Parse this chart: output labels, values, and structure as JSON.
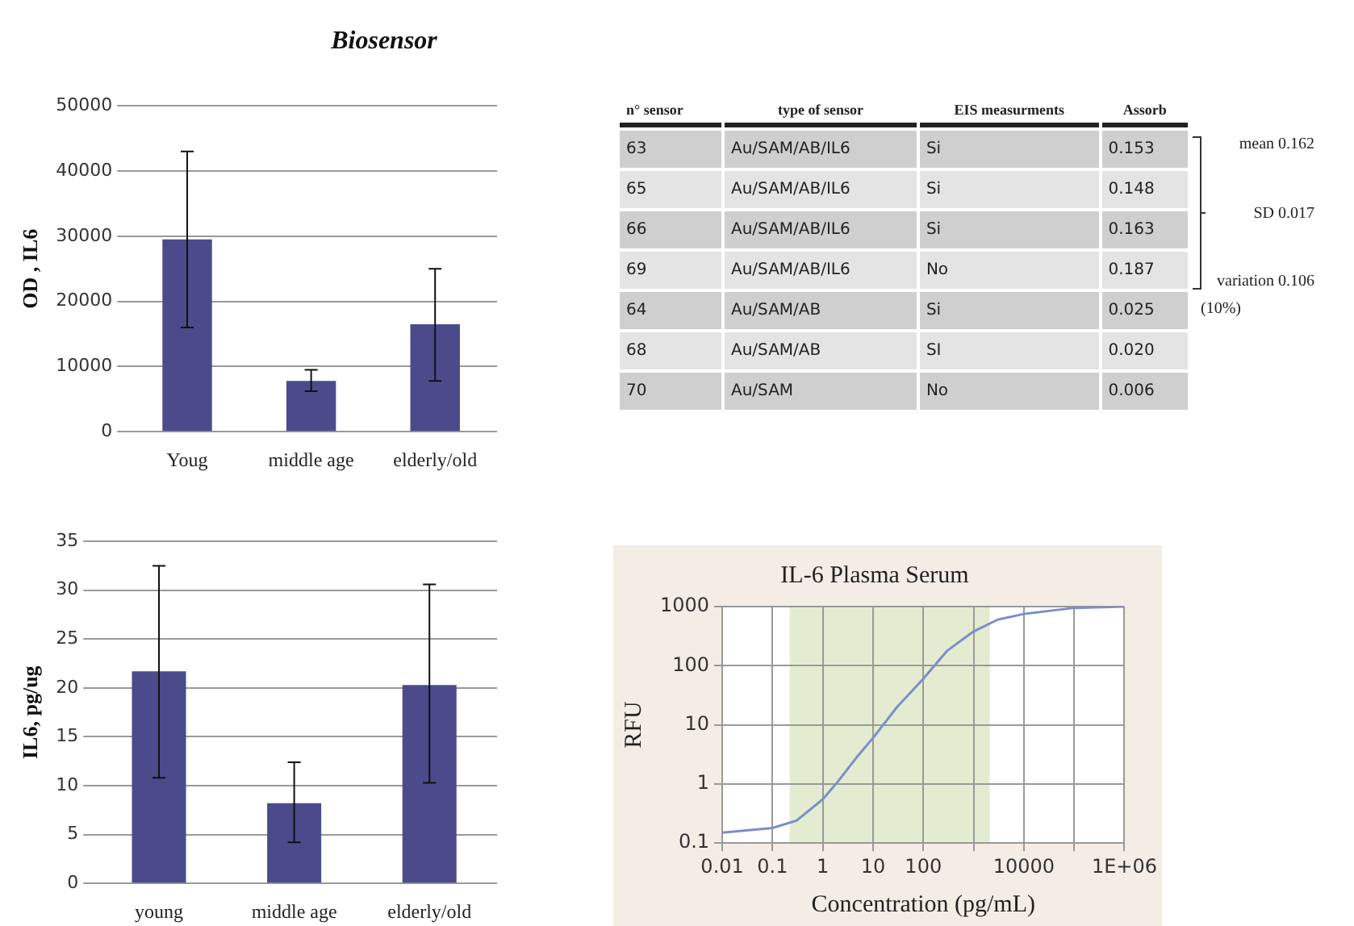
{
  "chart_data": [
    {
      "type": "bar",
      "title": "Biosensor",
      "ylabel": "OD , IL6",
      "categories": [
        "Youg",
        "middle age",
        "elderly/old"
      ],
      "values": [
        29500,
        7800,
        16500
      ],
      "color": "#4b4b8c",
      "errors": [
        [
          16000,
          43000
        ],
        [
          6200,
          9500
        ],
        [
          7800,
          25000
        ]
      ],
      "ylim": [
        0,
        50000
      ],
      "yticks": [
        0,
        10000,
        20000,
        30000,
        40000,
        50000
      ],
      "grid": "y"
    },
    {
      "type": "other",
      "categories": [
        "n° sensor",
        "type of sensor",
        "EIS measurments",
        "Assorb"
      ],
      "cell_labels": [
        [
          "63",
          "Au/SAM/AB/IL6",
          "Si",
          "0.153"
        ],
        [
          "65",
          "Au/SAM/AB/IL6",
          "Si",
          "0.148"
        ],
        [
          "66",
          "Au/SAM/AB/IL6",
          "Si",
          "0.163"
        ],
        [
          "69",
          "Au/SAM/AB/IL6",
          "No",
          "0.187"
        ],
        [
          "64",
          "Au/SAM/AB",
          "Si",
          "0.025"
        ],
        [
          "68",
          "Au/SAM/AB",
          "SI",
          "0.020"
        ],
        [
          "70",
          "Au/SAM",
          "No",
          "0.006"
        ]
      ],
      "annotations": [
        "mean 0.162",
        "SD 0.017",
        "variation 0.106",
        "(10%)"
      ]
    },
    {
      "type": "bar",
      "ylabel": "IL6, pg/ug",
      "categories": [
        "young",
        "middle age",
        "elderly/old"
      ],
      "values": [
        21.7,
        8.2,
        20.3
      ],
      "color": "#4b4b8c",
      "errors": [
        [
          10.8,
          32.5
        ],
        [
          4.2,
          12.4
        ],
        [
          10.3,
          30.6
        ]
      ],
      "ylim": [
        0,
        35
      ],
      "yticks": [
        0,
        5,
        10,
        15,
        20,
        25,
        30,
        35
      ],
      "grid": "y"
    },
    {
      "type": "line",
      "title": "IL-6 Plasma Serum",
      "xlabel": "Concentration (pg/mL)",
      "ylabel": "RFU",
      "log": "xy",
      "grid": true,
      "marker": "none",
      "x": [
        0.01,
        0.1,
        0.3,
        1,
        2,
        5,
        10,
        30,
        100,
        300,
        1000,
        3000,
        10000,
        100000,
        1000000
      ],
      "values": [
        0.15,
        0.18,
        0.24,
        0.55,
        1.1,
        3,
        6,
        20,
        60,
        180,
        380,
        600,
        750,
        950,
        1000
      ],
      "color": "#7b8fc7",
      "xlim": [
        0.01,
        1000000
      ],
      "xticks": [
        {
          "value": 0.01,
          "label": "0.01"
        },
        {
          "value": 0.1,
          "label": "0.1"
        },
        1,
        10,
        100,
        {
          "value": 1000,
          "label": null
        },
        10000,
        {
          "value": 100000,
          "label": null
        },
        {
          "value": 1000000,
          "label": "1E+06"
        }
      ],
      "ylim": [
        0.1,
        1000
      ],
      "yticks": [
        {
          "value": 0.1,
          "label": "0.1"
        },
        1,
        10,
        100,
        1000
      ],
      "bands": [
        {
          "axis": "x",
          "from": 0.22,
          "to": 2100,
          "color": "#e3ecd0"
        }
      ]
    }
  ]
}
